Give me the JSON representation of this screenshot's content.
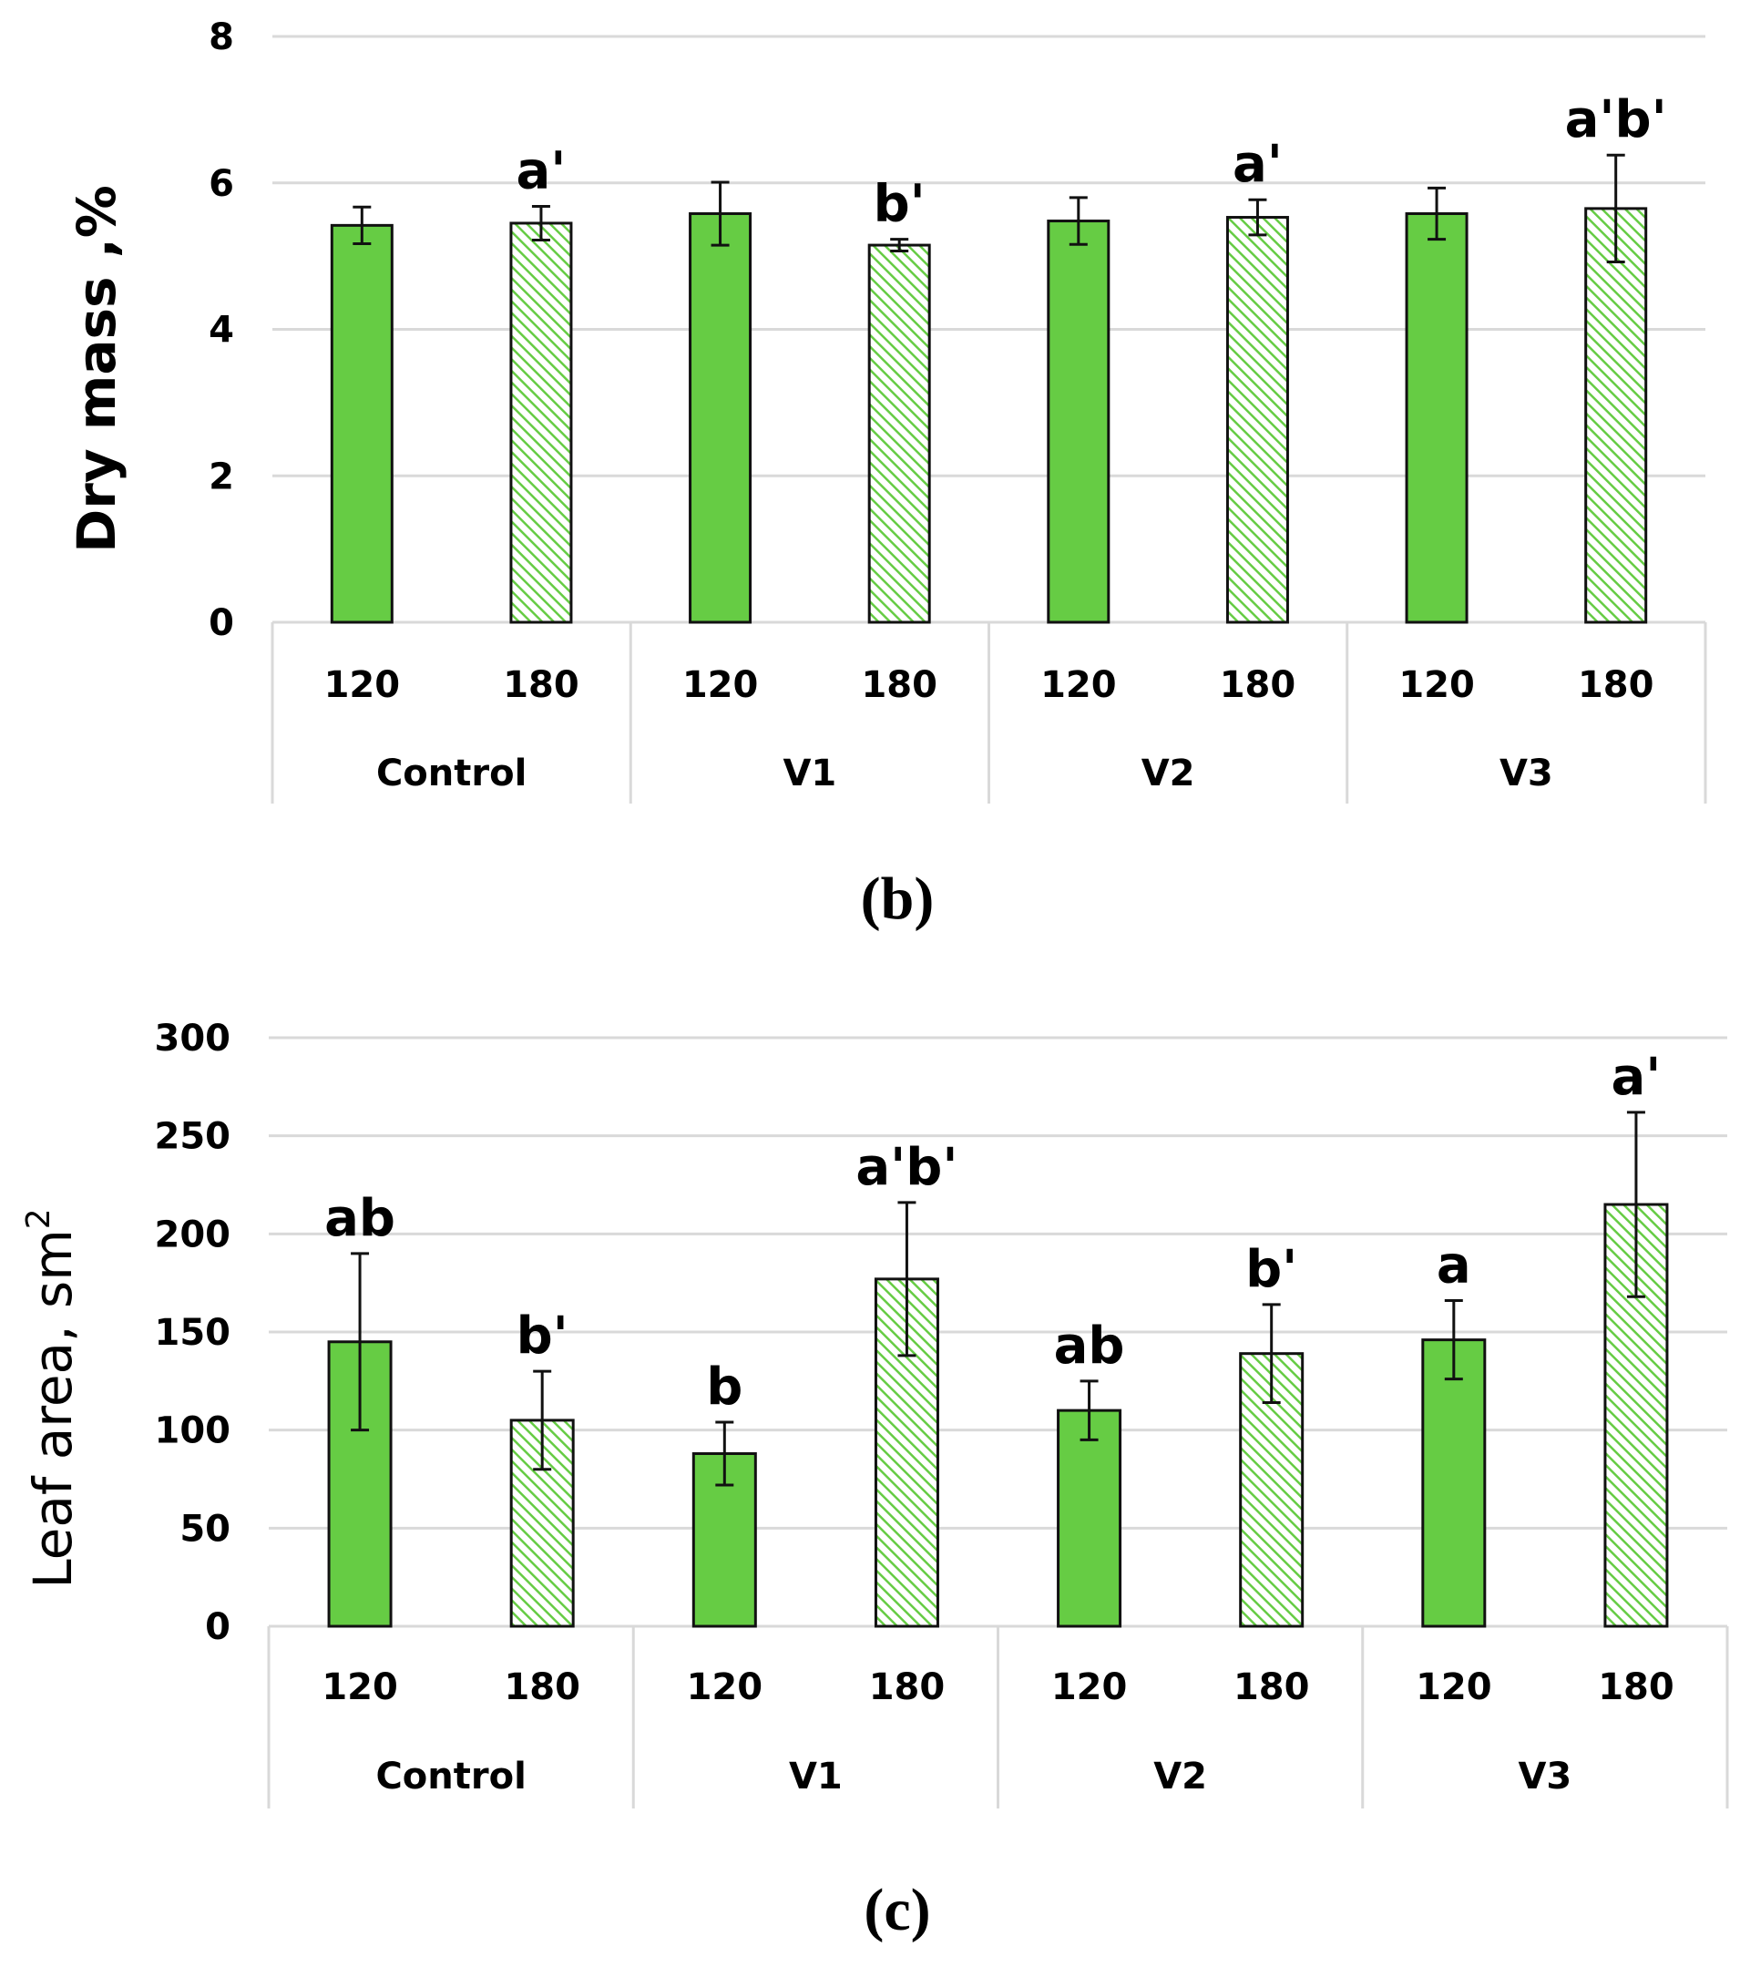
{
  "colors": {
    "bar": "#66cc44",
    "hatch": "#66cc44",
    "edge": "#111111",
    "grid": "#d9d9d9",
    "text": "#000000"
  },
  "chart_data": [
    {
      "type": "bar",
      "panel_label": "(b)",
      "ylabel": "Dry mass ,%",
      "ylim": [
        0,
        8
      ],
      "yticks": [
        0,
        2,
        4,
        6,
        8
      ],
      "grid": true,
      "categories": [
        "120",
        "180",
        "120",
        "180",
        "120",
        "180",
        "120",
        "180"
      ],
      "groups": [
        "Control",
        "V1",
        "V2",
        "V3"
      ],
      "hatched": [
        false,
        true,
        false,
        true,
        false,
        true,
        false,
        true
      ],
      "values": [
        5.42,
        5.45,
        5.58,
        5.15,
        5.48,
        5.53,
        5.58,
        5.65
      ],
      "errors": [
        0.25,
        0.23,
        0.43,
        0.08,
        0.32,
        0.24,
        0.35,
        0.73
      ],
      "letters": [
        "",
        "a'",
        "",
        "b'",
        "",
        "a'",
        "",
        "a'b'"
      ]
    },
    {
      "type": "bar",
      "panel_label": "(c)",
      "ylabel": "Leaf area, sm",
      "ylabel_sup": "2",
      "ylim": [
        0,
        300
      ],
      "yticks": [
        0,
        50,
        100,
        150,
        200,
        250,
        300
      ],
      "grid": true,
      "categories": [
        "120",
        "180",
        "120",
        "180",
        "120",
        "180",
        "120",
        "180"
      ],
      "groups": [
        "Control",
        "V1",
        "V2",
        "V3"
      ],
      "hatched": [
        false,
        true,
        false,
        true,
        false,
        true,
        false,
        true
      ],
      "values": [
        145,
        105,
        88,
        177,
        110,
        139,
        146,
        215
      ],
      "errors": [
        45,
        25,
        16,
        39,
        15,
        25,
        20,
        47
      ],
      "letters": [
        "ab",
        "b'",
        "b",
        "a'b'",
        "ab",
        "b'",
        "a",
        "a'"
      ]
    }
  ]
}
